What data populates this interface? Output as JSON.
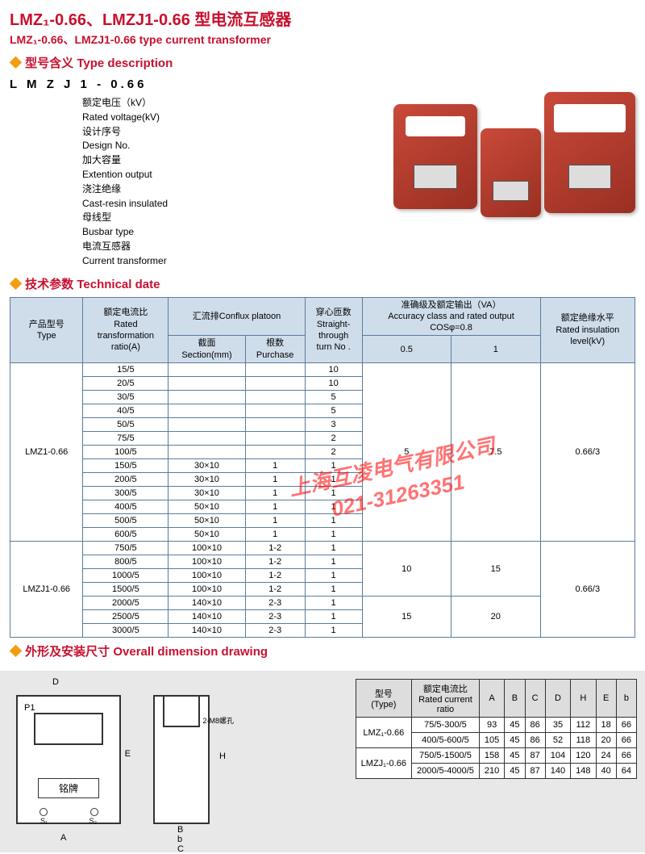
{
  "title_zh": "LMZ₁-0.66、LMZJ1-0.66 型电流互感器",
  "title_en": "LMZ₁-0.66、LMZJ1-0.66 type current transformer",
  "sections": {
    "typedesc": "型号含义 Type description",
    "tech": "技术参数 Technical date",
    "dims": "外形及安装尺寸 Overall dimension drawing"
  },
  "type_code": "L M Z J 1 - 0.66",
  "type_definitions": [
    "额定电压（kV）",
    "Rated voltage(kV)",
    "设计序号",
    "Design No.",
    "加大容量",
    "Extention output",
    "浇注绝缘",
    "Cast-resin insulated",
    "母线型",
    "Busbar type",
    "电流互感器",
    "Current transformer"
  ],
  "tech_headers": {
    "type": "产品型号\nType",
    "ratio": "额定电流比\nRated\ntransformation\nratio(A)",
    "conflux": "汇流排Conflux platoon",
    "section": "截面\nSection(mm)",
    "purchase": "根数\nPurchase",
    "turn": "穿心匝数\nStraight-\nthrough\nturn No .",
    "accuracy": "准确级及额定输出（VA）\nAccuracy class and rated output\nCOSφ=0.8",
    "acc05": "0.5",
    "acc1": "1",
    "insul": "额定绝缘水平\nRated insulation\nlevel(kV)"
  },
  "tech_groups": [
    {
      "type": "LMZ1-0.66",
      "acc05": "5",
      "acc1": "7.5",
      "insul": "0.66/3",
      "rows": [
        {
          "ratio": "15/5",
          "section": "",
          "purchase": "",
          "turn": "10"
        },
        {
          "ratio": "20/5",
          "section": "",
          "purchase": "",
          "turn": "10"
        },
        {
          "ratio": "30/5",
          "section": "",
          "purchase": "",
          "turn": "5"
        },
        {
          "ratio": "40/5",
          "section": "",
          "purchase": "",
          "turn": "5"
        },
        {
          "ratio": "50/5",
          "section": "",
          "purchase": "",
          "turn": "3"
        },
        {
          "ratio": "75/5",
          "section": "",
          "purchase": "",
          "turn": "2"
        },
        {
          "ratio": "100/5",
          "section": "",
          "purchase": "",
          "turn": "2"
        },
        {
          "ratio": "150/5",
          "section": "30×10",
          "purchase": "1",
          "turn": "1"
        },
        {
          "ratio": "200/5",
          "section": "30×10",
          "purchase": "1",
          "turn": "1"
        },
        {
          "ratio": "300/5",
          "section": "30×10",
          "purchase": "1",
          "turn": "1"
        },
        {
          "ratio": "400/5",
          "section": "50×10",
          "purchase": "1",
          "turn": "1"
        },
        {
          "ratio": "500/5",
          "section": "50×10",
          "purchase": "1",
          "turn": "1"
        },
        {
          "ratio": "600/5",
          "section": "50×10",
          "purchase": "1",
          "turn": "1"
        }
      ]
    },
    {
      "type": "LMZJ1-0.66",
      "insul": "0.66/3",
      "subgroups": [
        {
          "acc05": "10",
          "acc1": "15",
          "rows": [
            {
              "ratio": "750/5",
              "section": "100×10",
              "purchase": "1-2",
              "turn": "1"
            },
            {
              "ratio": "800/5",
              "section": "100×10",
              "purchase": "1-2",
              "turn": "1"
            },
            {
              "ratio": "1000/5",
              "section": "100×10",
              "purchase": "1-2",
              "turn": "1"
            },
            {
              "ratio": "1500/5",
              "section": "100×10",
              "purchase": "1-2",
              "turn": "1"
            }
          ]
        },
        {
          "acc05": "15",
          "acc1": "20",
          "rows": [
            {
              "ratio": "2000/5",
              "section": "140×10",
              "purchase": "2-3",
              "turn": "1"
            },
            {
              "ratio": "2500/5",
              "section": "140×10",
              "purchase": "2-3",
              "turn": "1"
            },
            {
              "ratio": "3000/5",
              "section": "140×10",
              "purchase": "2-3",
              "turn": "1"
            }
          ]
        }
      ]
    }
  ],
  "drawing_labels": {
    "D": "D",
    "P1": "P1",
    "E": "E",
    "A": "A",
    "B": "B",
    "b": "b",
    "C": "C",
    "H": "H",
    "plate": "铭牌",
    "holes": "2-M8螺孔",
    "s1": "S₁",
    "s2": "S₂"
  },
  "dims_headers": {
    "type": "型号\n(Type)",
    "ratio": "额定电流比\nRated current\nratio",
    "A": "A",
    "B": "B",
    "C": "C",
    "D": "D",
    "H": "H",
    "E": "E",
    "b": "b"
  },
  "dims_rows": [
    {
      "type": "LMZ₁-0.66",
      "span": 2,
      "data": [
        {
          "ratio": "75/5-300/5",
          "A": "93",
          "B": "45",
          "C": "86",
          "D": "35",
          "H": "112",
          "E": "18",
          "b": "66"
        },
        {
          "ratio": "400/5-600/5",
          "A": "105",
          "B": "45",
          "C": "86",
          "D": "52",
          "H": "118",
          "E": "20",
          "b": "66"
        }
      ]
    },
    {
      "type": "LMZJ₁-0.66",
      "span": 2,
      "data": [
        {
          "ratio": "750/5-1500/5",
          "A": "158",
          "B": "45",
          "C": "87",
          "D": "104",
          "H": "120",
          "E": "24",
          "b": "66"
        },
        {
          "ratio": "2000/5-4000/5",
          "A": "210",
          "B": "45",
          "C": "87",
          "D": "140",
          "H": "148",
          "E": "40",
          "b": "64"
        }
      ]
    }
  ],
  "watermark": {
    "line1": "上海互凌电气有限公司",
    "line2": "021-31263351"
  },
  "colors": {
    "brand": "#c8102e",
    "diamond": "#f39c12",
    "table_border": "#5b7b9b",
    "table_header_bg": "#cfddeb",
    "dim_bg": "#e8e8e8",
    "product": "#a93226"
  }
}
